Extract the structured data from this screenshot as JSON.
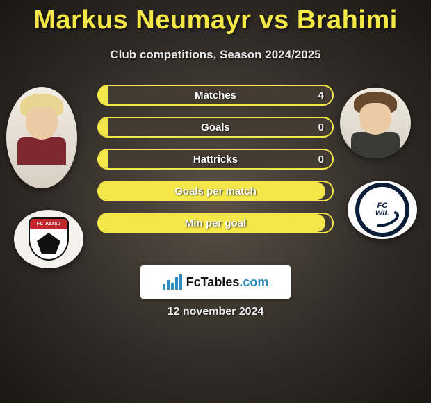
{
  "title": "Markus Neumayr vs Brahimi",
  "subtitle": "Club competitions, Season 2024/2025",
  "date": "12 november 2024",
  "colors": {
    "accent": "#f4e848",
    "bar_track": "#443c32",
    "text": "#ffffff"
  },
  "players": {
    "left": {
      "name": "Markus Neumayr",
      "hair": "blond",
      "kit": "maroon",
      "club_label": "FC Aarau"
    },
    "right": {
      "name": "Brahimi",
      "hair": "brown",
      "kit": "dark",
      "club_label": "FC WIL 1900"
    }
  },
  "branding": {
    "text_main": "FcTables",
    "text_domain": ".com"
  },
  "metrics": [
    {
      "label": "Matches",
      "value": "4",
      "fill_pct": 4
    },
    {
      "label": "Goals",
      "value": "0",
      "fill_pct": 4
    },
    {
      "label": "Hattricks",
      "value": "0",
      "fill_pct": 4
    },
    {
      "label": "Goals per match",
      "value": "",
      "fill_pct": 97
    },
    {
      "label": "Min per goal",
      "value": "",
      "fill_pct": 97
    }
  ]
}
